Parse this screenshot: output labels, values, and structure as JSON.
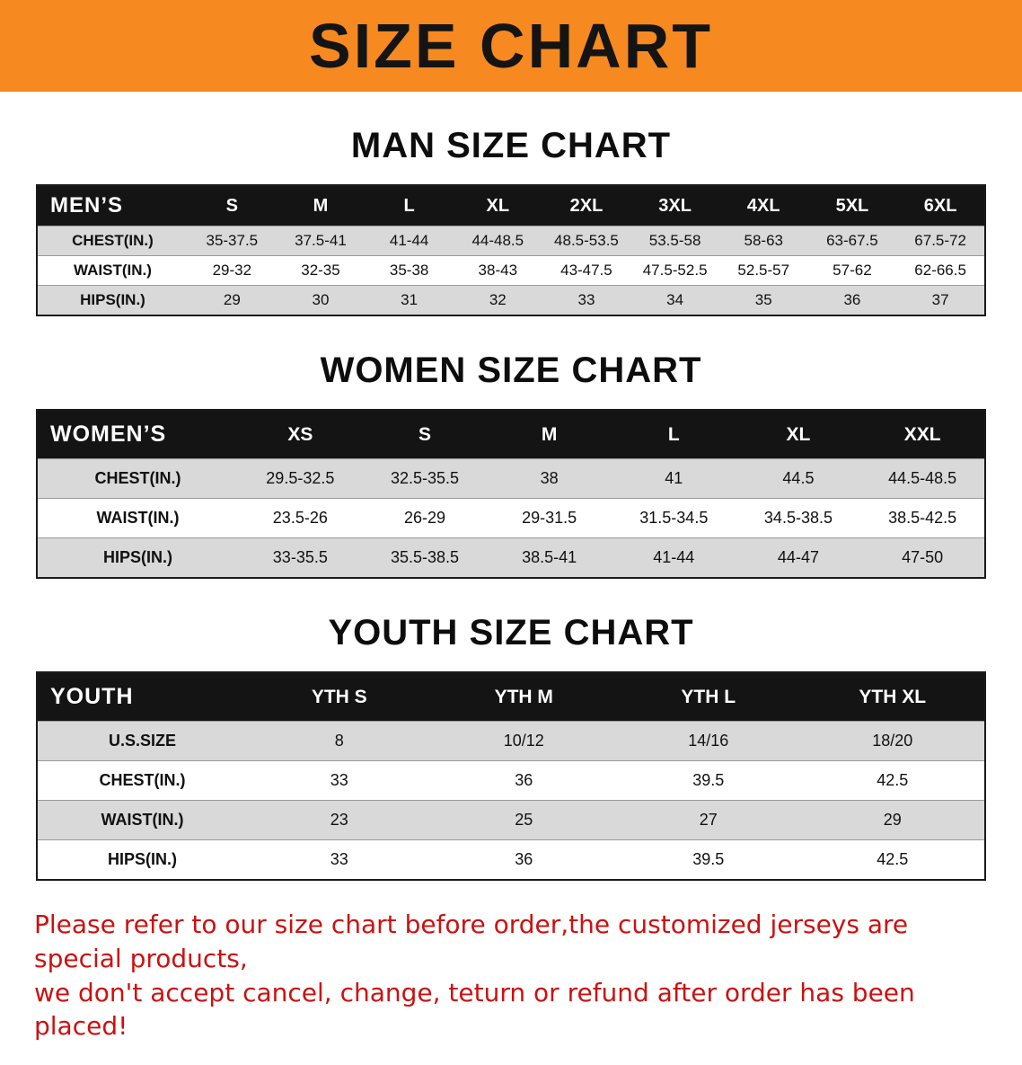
{
  "banner": {
    "title": "SIZE CHART",
    "bg_color": "#f6891f",
    "text_color": "#141414"
  },
  "tables": [
    {
      "title": "MAN SIZE CHART",
      "header_label": "MEN’S",
      "columns": [
        "S",
        "M",
        "L",
        "XL",
        "2XL",
        "3XL",
        "4XL",
        "5XL",
        "6XL"
      ],
      "rows": [
        {
          "label": "CHEST(IN.)",
          "values": [
            "35-37.5",
            "37.5-41",
            "41-44",
            "44-48.5",
            "48.5-53.5",
            "53.5-58",
            "58-63",
            "63-67.5",
            "67.5-72"
          ]
        },
        {
          "label": "WAIST(IN.)",
          "values": [
            "29-32",
            "32-35",
            "35-38",
            "38-43",
            "43-47.5",
            "47.5-52.5",
            "52.5-57",
            "57-62",
            "62-66.5"
          ]
        },
        {
          "label": "HIPS(IN.)",
          "values": [
            "29",
            "30",
            "31",
            "32",
            "33",
            "34",
            "35",
            "36",
            "37"
          ]
        }
      ]
    },
    {
      "title": "WOMEN SIZE CHART",
      "header_label": "WOMEN’S",
      "columns": [
        "XS",
        "S",
        "M",
        "L",
        "XL",
        "XXL"
      ],
      "rows": [
        {
          "label": "CHEST(IN.)",
          "values": [
            "29.5-32.5",
            "32.5-35.5",
            "38",
            "41",
            "44.5",
            "44.5-48.5"
          ]
        },
        {
          "label": "WAIST(IN.)",
          "values": [
            "23.5-26",
            "26-29",
            "29-31.5",
            "31.5-34.5",
            "34.5-38.5",
            "38.5-42.5"
          ]
        },
        {
          "label": "HIPS(IN.)",
          "values": [
            "33-35.5",
            "35.5-38.5",
            "38.5-41",
            "41-44",
            "44-47",
            "47-50"
          ]
        }
      ]
    },
    {
      "title": "YOUTH SIZE CHART",
      "header_label": "YOUTH",
      "columns": [
        "YTH S",
        "YTH M",
        "YTH L",
        "YTH XL"
      ],
      "rows": [
        {
          "label": "U.S.SIZE",
          "values": [
            "8",
            "10/12",
            "14/16",
            "18/20"
          ]
        },
        {
          "label": "CHEST(IN.)",
          "values": [
            "33",
            "36",
            "39.5",
            "42.5"
          ]
        },
        {
          "label": "WAIST(IN.)",
          "values": [
            "23",
            "25",
            "27",
            "29"
          ]
        },
        {
          "label": "HIPS(IN.)",
          "values": [
            "33",
            "36",
            "39.5",
            "42.5"
          ]
        }
      ]
    }
  ],
  "footer": {
    "line1": "Please refer to our size chart before order,the customized jerseys are special products,",
    "line2": "we don't accept cancel, change, teturn or refund after order has been placed!",
    "text_color": "#cc1111"
  }
}
